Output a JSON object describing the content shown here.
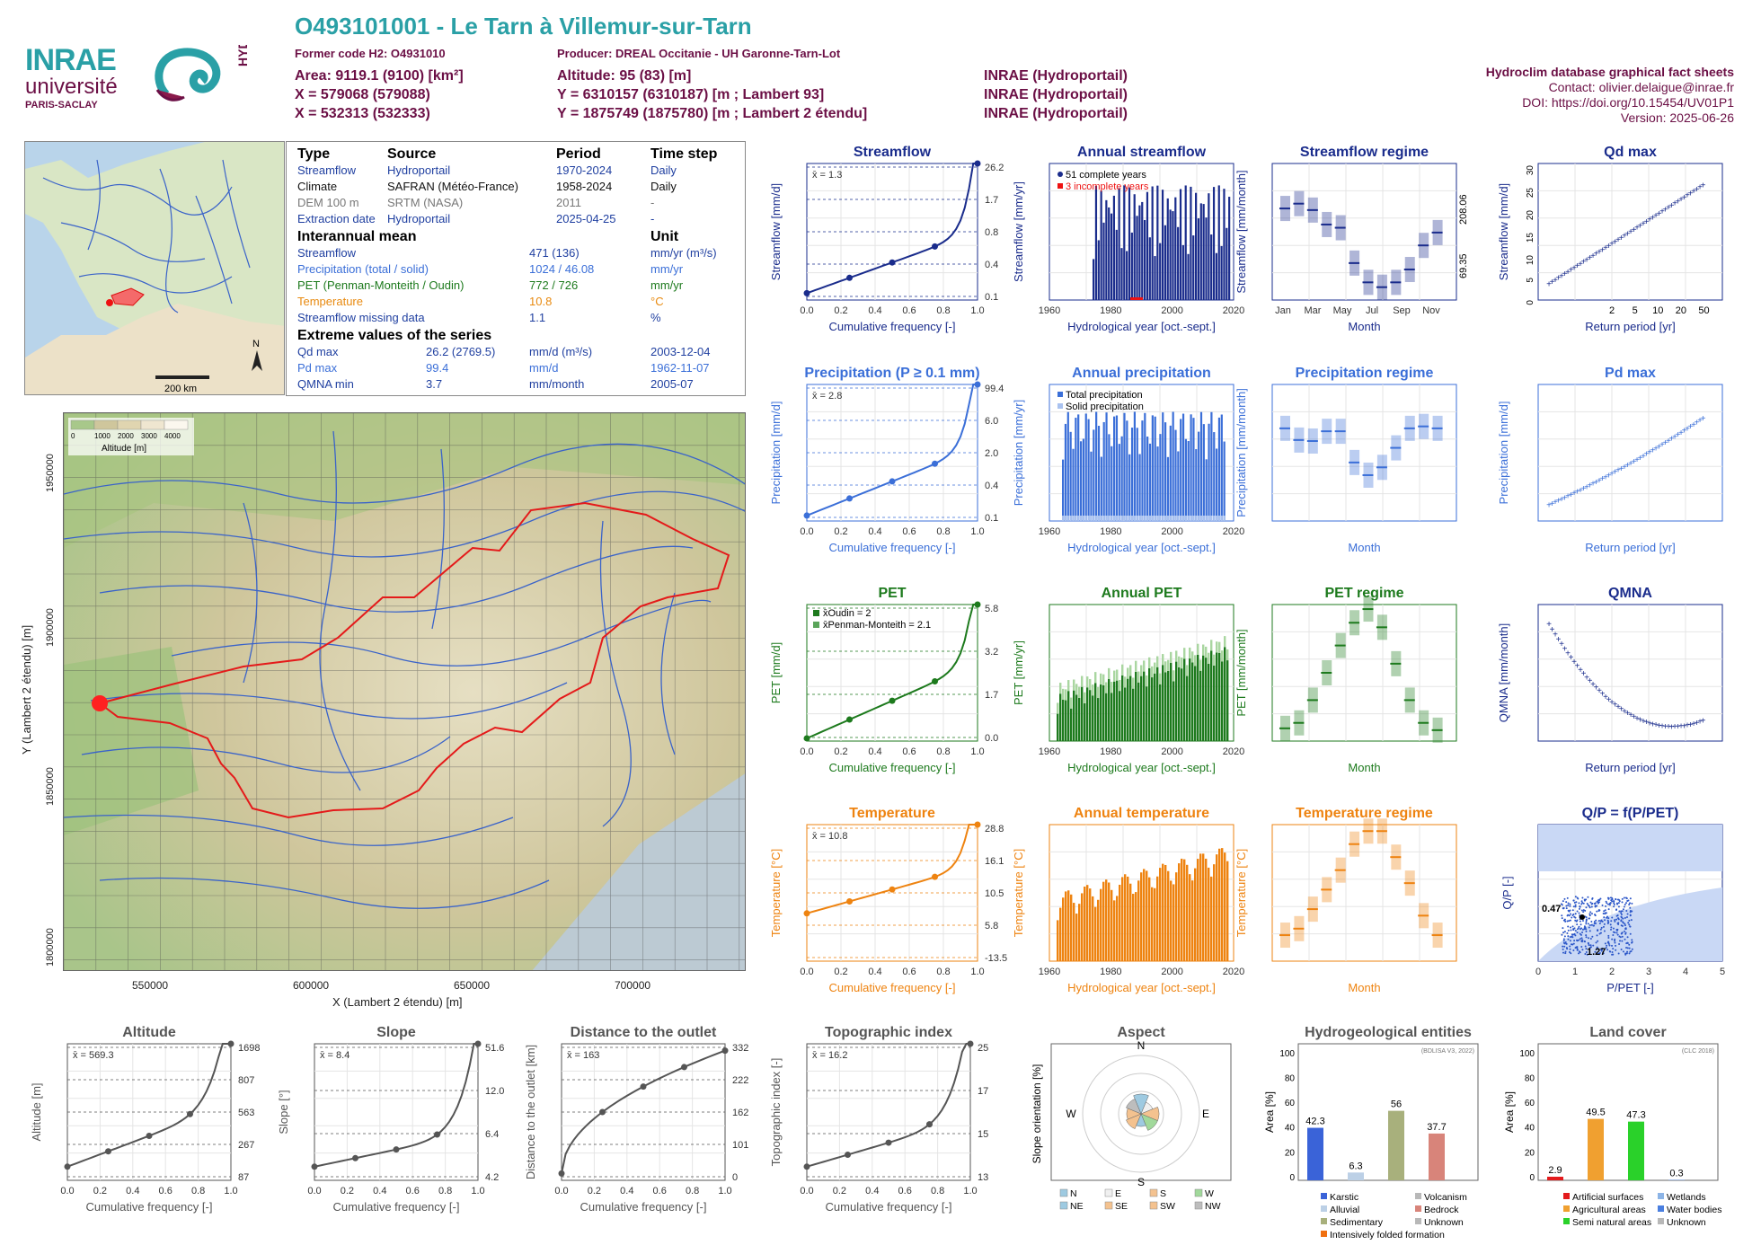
{
  "header": {
    "title": "O493101001 - Le Tarn à Villemur-sur-Tarn",
    "former_code": "Former code H2: O4931010",
    "producer": "Producer: DREAL Occitanie - UH Garonne-Tarn-Lot",
    "lines_left": [
      "Area: 9119.1 (9100) [km²]",
      "X = 579068 (579088)",
      "X = 532313 (532333)"
    ],
    "lines_mid": [
      "Altitude: 95 (83) [m]",
      "Y = 6310157 (6310187) [m ; Lambert 93]",
      "Y = 1875749 (1875780) [m ; Lambert 2 étendu]"
    ],
    "lines_src": [
      "INRAE (Hydroportail)",
      "INRAE (Hydroportail)",
      "INRAE (Hydroportail)"
    ],
    "right": [
      "Hydroclim database graphical fact sheets",
      "Contact: olivier.delaigue@inrae.fr",
      "DOI: https://doi.org/10.15454/UV01P1",
      "Version: 2025-06-26"
    ],
    "logo_inrae": "INRAE",
    "logo_univ": "université",
    "logo_ps": "PARIS-SACLAY",
    "logo_hydro": "HYDRO"
  },
  "locmap": {
    "scale": "200 km",
    "north": "N"
  },
  "info": {
    "head": [
      "Type",
      "Source",
      "Period",
      "Time step"
    ],
    "rows": [
      {
        "t": "Streamflow",
        "s": "Hydroportail",
        "p": "1970-2024",
        "ts": "Daily",
        "c": "#1f3fa0"
      },
      {
        "t": "Climate",
        "s": "SAFRAN (Météo-France)",
        "p": "1958-2024",
        "ts": "Daily",
        "c": "#111"
      },
      {
        "t": "DEM 100 m",
        "s": "SRTM (NASA)",
        "p": "2011",
        "ts": "-",
        "c": "#777"
      },
      {
        "t": "Extraction date",
        "s": "Hydroportail",
        "p": "2025-04-25",
        "ts": "-",
        "c": "#1f3fa0"
      }
    ],
    "mean_head": "Interannual mean",
    "unit_head": "Unit",
    "means": [
      {
        "l": "Streamflow",
        "v": "471 (136)",
        "u": "mm/yr (m³/s)",
        "c": "#1f3fa0"
      },
      {
        "l": "Precipitation (total / solid)",
        "v": "1024 / 46.08",
        "u": "mm/yr",
        "c": "#3b6fd8"
      },
      {
        "l": "PET (Penman-Monteith / Oudin)",
        "v": "772 / 726",
        "u": "mm/yr",
        "c": "#1d7a1d"
      },
      {
        "l": "Temperature",
        "v": "10.8",
        "u": "°C",
        "c": "#e88a10"
      },
      {
        "l": "Streamflow missing data",
        "v": "1.1",
        "u": "%",
        "c": "#1f3fa0"
      }
    ],
    "ext_head": "Extreme values of the series",
    "ext": [
      {
        "l": "Qd max",
        "v": "26.2 (2769.5)",
        "u": "mm/d (m³/s)",
        "d": "2003-12-04",
        "c": "#1f3fa0"
      },
      {
        "l": "Pd max",
        "v": "99.4",
        "u": "mm/d",
        "d": "1962-11-07",
        "c": "#3b6fd8"
      },
      {
        "l": "QMNA min",
        "v": "3.7",
        "u": "mm/month",
        "d": "2005-07",
        "c": "#1f3fa0"
      }
    ]
  },
  "mainmap": {
    "xlabel": "X (Lambert 2 étendu) [m]",
    "ylabel": "Y (Lambert 2 étendu) [m]",
    "xticks": [
      "550000",
      "600000",
      "650000",
      "700000"
    ],
    "yticks": [
      "1950000",
      "1900000",
      "1850000",
      "1800000"
    ],
    "legend_title": "Altitude [m]",
    "legend_ticks": [
      "0",
      "1000",
      "2000",
      "3000",
      "4000"
    ]
  },
  "colors": {
    "q": "#1a2c8c",
    "p": "#3b6fd8",
    "pet": "#1d7a1d",
    "t": "#ee8310",
    "grey": "#555555"
  },
  "chart_data": [
    {
      "id": "flow_cdf",
      "type": "line",
      "title": "Streamflow",
      "xlabel": "Cumulative frequency [-]",
      "ylabel": "Streamflow [mm/d]",
      "mean": "x̄ = 1.3",
      "right_labels": [
        "26.2",
        "1.7",
        "0.8",
        "0.4",
        "0.1"
      ],
      "y": [
        0.1,
        0.4,
        0.8,
        1.7,
        26.2
      ]
    },
    {
      "id": "annual_flow",
      "type": "bar",
      "title": "Annual streamflow",
      "xlabel": "Hydrological year [oct.-sept.]",
      "ylabel": "Streamflow [mm/yr]",
      "legend": [
        "51 complete years",
        "3 incomplete years"
      ],
      "ylim": [
        0,
        1000
      ]
    },
    {
      "id": "flow_regime",
      "type": "box",
      "title": "Streamflow regime",
      "xlabel": "Month",
      "ylabel": "Streamflow [mm/month]",
      "y2label": "Streamflow [m³/s]",
      "right_labels": [
        "208.06",
        "69.35"
      ],
      "months": [
        "Jan",
        "Mar",
        "May",
        "Jul",
        "Sep",
        "Nov"
      ],
      "median": [
        57,
        60,
        56,
        47,
        45,
        23,
        11,
        8,
        11,
        19,
        34,
        42
      ]
    },
    {
      "id": "qd_max",
      "type": "scatter",
      "title": "Qd  max",
      "xlabel": "Return period [yr]",
      "ylabel": "Streamflow [mm/d]",
      "xticks": [
        "2",
        "5",
        "10",
        "20",
        "50"
      ],
      "yticks": [
        "0",
        "5",
        "10",
        "15",
        "20",
        "25",
        "30"
      ]
    },
    {
      "id": "precip_cdf",
      "type": "line",
      "title": "Precipitation (P ≥ 0.1 mm)",
      "xlabel": "Cumulative frequency [-]",
      "ylabel": "Precipitation [mm/d]",
      "mean": "x̄ = 2.8",
      "right_labels": [
        "99.4",
        "6.0",
        "2.0",
        "0.4",
        "0.1"
      ]
    },
    {
      "id": "annual_precip",
      "type": "bar",
      "title": "Annual precipitation",
      "xlabel": "Hydrological year [oct.-sept.]",
      "ylabel": "Precipitation [mm/yr]",
      "legend": [
        "Total precipitation",
        "Solid precipitation"
      ]
    },
    {
      "id": "precip_regime",
      "type": "box",
      "title": "Precipitation regime",
      "xlabel": "Month",
      "ylabel": "Precipitation [mm/month]",
      "median": [
        95,
        83,
        82,
        92,
        92,
        60,
        47,
        55,
        75,
        95,
        97,
        95
      ]
    },
    {
      "id": "pd_max",
      "type": "scatter",
      "title": "Pd  max",
      "xlabel": "Return period [yr]",
      "ylabel": "Precipitation [mm/d]"
    },
    {
      "id": "pet_cdf",
      "type": "line",
      "title": "PET",
      "xlabel": "Cumulative frequency [-]",
      "ylabel": "PET [mm/d]",
      "legend": [
        "x̄Oudin = 2",
        "x̄Penman-Monteith = 2.1"
      ],
      "right_labels": [
        "5.8",
        "3.2",
        "1.7",
        "0.0"
      ]
    },
    {
      "id": "annual_pet",
      "type": "bar",
      "title": "Annual PET",
      "xlabel": "Hydrological year [oct.-sept.]",
      "ylabel": "PET [mm/yr]"
    },
    {
      "id": "pet_regime",
      "type": "box",
      "title": "PET regime",
      "xlabel": "Month",
      "ylabel": "PET [mm/month]"
    },
    {
      "id": "qmna",
      "type": "scatter",
      "title": "QMNA",
      "xlabel": "Return period [yr]",
      "ylabel": "QMNA [mm/month]"
    },
    {
      "id": "temp_cdf",
      "type": "line",
      "title": "Temperature",
      "xlabel": "Cumulative frequency [-]",
      "ylabel": "Temperature [°C]",
      "mean": "x̄ = 10.8",
      "right_labels": [
        "28.8",
        "16.1",
        "10.5",
        "5.8",
        "-13.5"
      ]
    },
    {
      "id": "annual_temp",
      "type": "bar",
      "title": "Annual temperature",
      "xlabel": "Hydrological year [oct.-sept.]",
      "ylabel": "Temperature [°C]"
    },
    {
      "id": "temp_regime",
      "type": "box",
      "title": "Temperature regime",
      "xlabel": "Month",
      "ylabel": "Temperature [°C]"
    },
    {
      "id": "budyko",
      "type": "scatter",
      "title": "Q/P = f(P/PET)",
      "xlabel": "P/PET [-]",
      "ylabel": "Q/P [-]",
      "labels": [
        "0.47",
        "1.27"
      ]
    },
    {
      "id": "alt_cdf",
      "type": "line",
      "title": "Altitude",
      "xlabel": "Cumulative frequency [-]",
      "ylabel": "Altitude [m]",
      "mean": "x̄ = 569.3",
      "right_labels": [
        "1698",
        "807",
        "563",
        "267",
        "87"
      ]
    },
    {
      "id": "slope_cdf",
      "type": "line",
      "title": "Slope",
      "xlabel": "Cumulative frequency [-]",
      "ylabel": "Slope [°]",
      "mean": "x̄ = 8.4",
      "right_labels": [
        "51.6",
        "12.0",
        "6.4",
        "4.2"
      ]
    },
    {
      "id": "dist_cdf",
      "type": "line",
      "title": "Distance to the outlet",
      "xlabel": "Cumulative frequency [-]",
      "ylabel": "Distance to the outlet [km]",
      "mean": "x̄ = 163",
      "right_labels": [
        "332",
        "222",
        "162",
        "101",
        "0"
      ]
    },
    {
      "id": "topo_cdf",
      "type": "line",
      "title": "Topographic index",
      "xlabel": "Cumulative frequency [-]",
      "ylabel": "Topographic index [-]",
      "mean": "x̄ = 16.2",
      "right_labels": [
        "25",
        "17",
        "15",
        "13"
      ]
    },
    {
      "id": "aspect",
      "type": "pie",
      "title": "Aspect",
      "ylabel": "Slope orientation [%]",
      "legend": [
        "N",
        "E",
        "S",
        "W",
        "NE",
        "SE",
        "SW",
        "NW"
      ]
    },
    {
      "id": "hydrogeo",
      "type": "bar",
      "title": "Hydrogeological entities",
      "ylabel": "Area [%]",
      "note": "(BDLISA V3, 2022)",
      "values": [
        {
          "name": "Karstic",
          "v": 42.3
        },
        {
          "name": "Alluvial",
          "v": 6.3
        },
        {
          "name": "Sedimentary",
          "v": 56
        },
        {
          "name": "Bedrock",
          "v": 37.7
        }
      ],
      "legend": [
        "Karstic",
        "Volcanism",
        "Alluvial",
        "Bedrock",
        "Sedimentary",
        "Unknown",
        "Intensively folded formation"
      ]
    },
    {
      "id": "landcover",
      "type": "bar",
      "title": "Land cover",
      "ylabel": "Area [%]",
      "note": "(CLC 2018)",
      "values": [
        {
          "name": "Artificial surfaces",
          "v": 2.9
        },
        {
          "name": "Agricultural areas",
          "v": 49.5
        },
        {
          "name": "Semi natural areas",
          "v": 47.3
        },
        {
          "name": "Water bodies",
          "v": 0.3
        }
      ],
      "legend": [
        "Artificial surfaces",
        "Wetlands",
        "Agricultural areas",
        "Water bodies",
        "Semi natural areas",
        "Unknown"
      ]
    }
  ]
}
